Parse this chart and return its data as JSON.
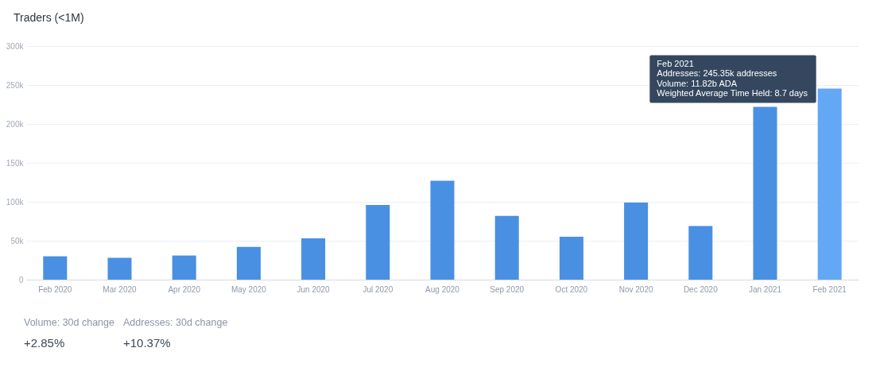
{
  "chart_data": {
    "type": "bar",
    "title": "Traders (<1M)",
    "categories": [
      "Feb 2020",
      "Mar 2020",
      "Apr 2020",
      "May 2020",
      "Jun 2020",
      "Jul 2020",
      "Aug 2020",
      "Sep 2020",
      "Oct 2020",
      "Nov 2020",
      "Dec 2020",
      "Jan 2021",
      "Feb 2021"
    ],
    "values": [
      30,
      28,
      31,
      42,
      53,
      96,
      127,
      82,
      55,
      99,
      69,
      222,
      245.35
    ],
    "colors": [
      "#4a90e2",
      "#4a90e2",
      "#4a90e2",
      "#4a90e2",
      "#4a90e2",
      "#4a90e2",
      "#4a90e2",
      "#4a90e2",
      "#4a90e2",
      "#4a90e2",
      "#4a90e2",
      "#4a90e2",
      "#62a8f5"
    ],
    "ylim": [
      0,
      300
    ],
    "yticks": [
      0,
      {
        "value": 50,
        "label": "50k"
      },
      {
        "value": 100,
        "label": "100k"
      },
      {
        "value": 150,
        "label": "150k"
      },
      {
        "value": 200,
        "label": "200k"
      },
      {
        "value": 250,
        "label": "250k"
      },
      {
        "value": 300,
        "label": "300k"
      }
    ],
    "grid": "y",
    "annotations": [
      {
        "text": "Feb 2021\nAddresses: 245.35k addresses\nVolume: 11.82b ADA\nWeighted Average Time Held: 8.7 days",
        "x": "Feb 2021",
        "y": 245.35
      },
      "Volume: 30d change",
      "+2.85%",
      "Addresses: 30d change",
      "+10.37%"
    ]
  }
}
